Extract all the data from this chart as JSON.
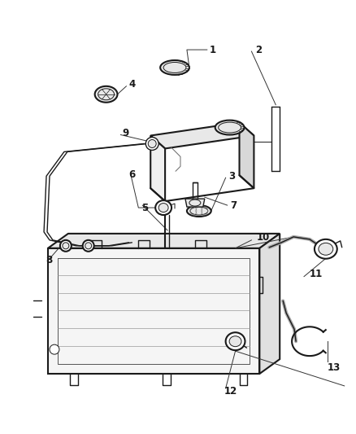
{
  "bg_color": "#ffffff",
  "line_color": "#1a1a1a",
  "label_color": "#1a1a1a",
  "fig_width": 4.38,
  "fig_height": 5.33,
  "dpi": 100,
  "leader_color": "#333333",
  "gray_fill": "#c8c8c8",
  "light_gray": "#e8e8e8",
  "mid_gray": "#aaaaaa"
}
